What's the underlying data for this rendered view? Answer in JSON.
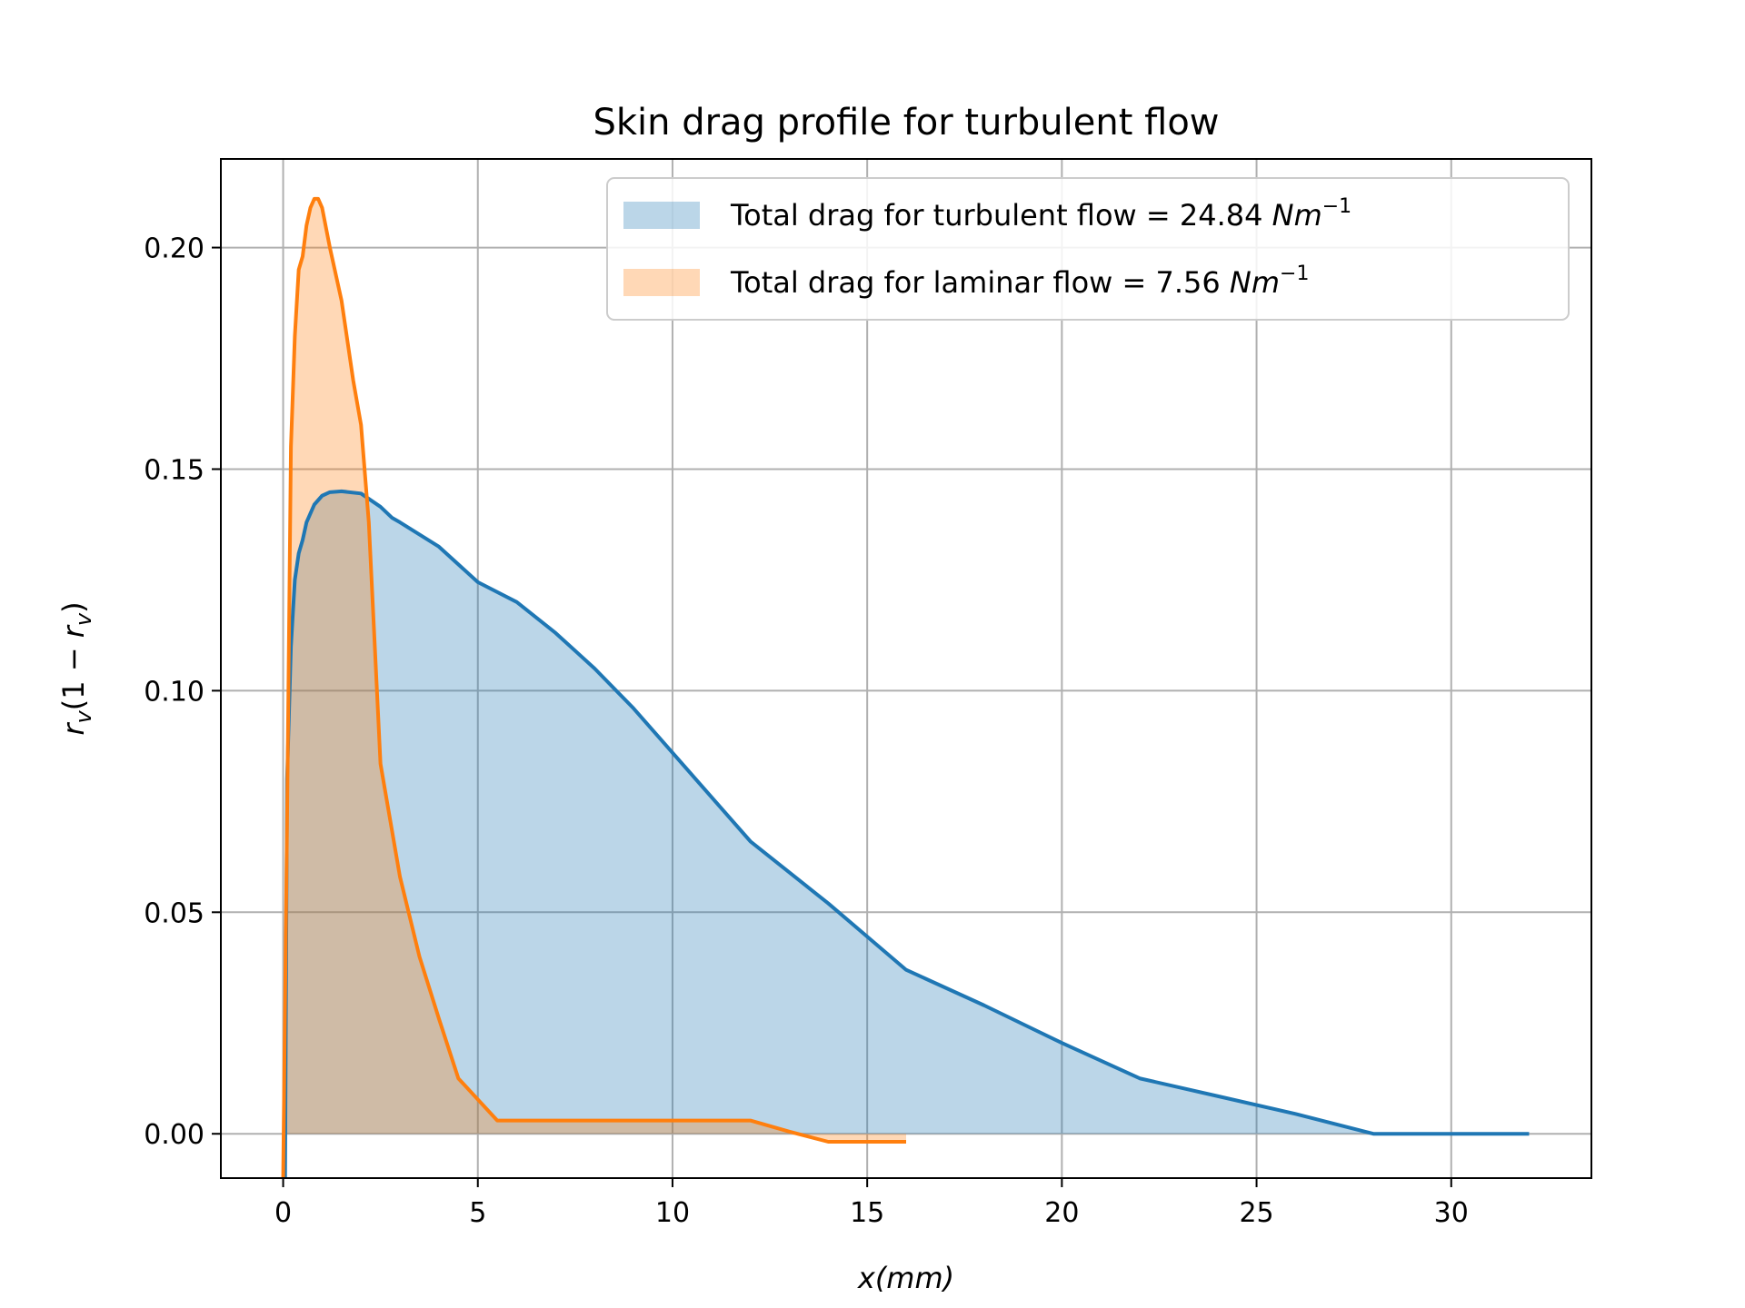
{
  "chart_data": {
    "type": "area",
    "title": "Skin drag profile for turbulent flow",
    "xlabel": "x(mm)",
    "ylabel": "r_v(1 − r_v)",
    "xlim": [
      -1.6,
      33.6
    ],
    "ylim": [
      -0.01,
      0.22
    ],
    "xticks": [
      0,
      5,
      10,
      15,
      20,
      25,
      30
    ],
    "yticks": [
      0.0,
      0.05,
      0.1,
      0.15,
      0.2
    ],
    "xtick_labels": [
      "0",
      "5",
      "10",
      "15",
      "20",
      "25",
      "30"
    ],
    "ytick_labels": [
      "0.00",
      "0.05",
      "0.10",
      "0.15",
      "0.20"
    ],
    "grid": true,
    "legend_position": "top-right",
    "series": [
      {
        "name": "Total drag for turbulent flow = 24.84 Nm⁻¹",
        "legend_main": "Total drag for turbulent flow = 24.84 ",
        "legend_unit": "Nm",
        "legend_exp": "−1",
        "color": "#1f77b4",
        "fill_color": "#1f77b4",
        "x": [
          0.05,
          0.1,
          0.2,
          0.3,
          0.4,
          0.5,
          0.6,
          0.8,
          1.0,
          1.2,
          1.5,
          2.0,
          2.5,
          2.8,
          3.0,
          4.0,
          5.0,
          6.0,
          7.0,
          8.0,
          9.0,
          10.0,
          12.0,
          14.0,
          16.0,
          18.0,
          20.0,
          22.0,
          24.0,
          26.0,
          28.0,
          30.0,
          32.0
        ],
        "y": [
          -0.01,
          0.08,
          0.11,
          0.125,
          0.131,
          0.134,
          0.138,
          0.142,
          0.144,
          0.1448,
          0.145,
          0.1445,
          0.1415,
          0.139,
          0.138,
          0.1325,
          0.1245,
          0.12,
          0.113,
          0.105,
          0.096,
          0.086,
          0.066,
          0.052,
          0.037,
          0.029,
          0.0205,
          0.0125,
          0.0085,
          0.0045,
          0.0,
          0.0,
          0.0
        ]
      },
      {
        "name": "Total drag for laminar flow = 7.56 Nm⁻¹",
        "legend_main": "Total drag for laminar flow = 7.56 ",
        "legend_unit": "Nm",
        "legend_exp": "−1",
        "color": "#ff7f0e",
        "fill_color": "#ff7f0e",
        "x": [
          0.0,
          0.1,
          0.2,
          0.3,
          0.4,
          0.5,
          0.6,
          0.7,
          0.8,
          0.9,
          1.0,
          1.2,
          1.5,
          1.8,
          2.0,
          2.2,
          2.5,
          3.0,
          3.5,
          4.0,
          4.5,
          5.5,
          7.0,
          10.0,
          12.0,
          13.0,
          14.0,
          15.0,
          16.0
        ],
        "y": [
          -0.01,
          0.07,
          0.155,
          0.18,
          0.195,
          0.198,
          0.205,
          0.209,
          0.211,
          0.211,
          0.209,
          0.2,
          0.188,
          0.17,
          0.16,
          0.138,
          0.0835,
          0.058,
          0.04,
          0.026,
          0.0125,
          0.003,
          0.003,
          0.003,
          0.003,
          0.0005,
          -0.0018,
          -0.0018,
          -0.0018
        ]
      }
    ]
  },
  "colors": {
    "turbulent": "#1f77b4",
    "laminar": "#ff7f0e",
    "grid": "#b0b0b0"
  }
}
